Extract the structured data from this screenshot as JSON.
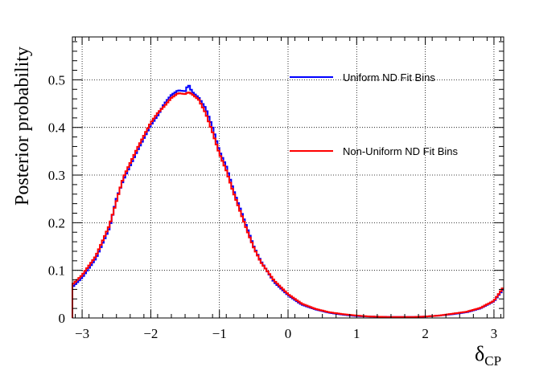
{
  "chart_data": {
    "type": "line",
    "title": "",
    "xlabel_main": "δ",
    "xlabel_sub": "CP",
    "ylabel": "Posterior probability",
    "xlim": [
      -3.1416,
      3.1416
    ],
    "ylim": [
      0,
      0.59
    ],
    "grid": true,
    "legend": "top-right",
    "xticks": [
      -3,
      -2,
      -1,
      0,
      1,
      2,
      3
    ],
    "xtick_labels": [
      "−3",
      "−2",
      "−1",
      "0",
      "1",
      "2",
      "3"
    ],
    "yticks": [
      0,
      0.1,
      0.2,
      0.3,
      0.4,
      0.5
    ],
    "ytick_labels": [
      "0",
      "0.1",
      "0.2",
      "0.3",
      "0.4",
      "0.5"
    ],
    "series": [
      {
        "name": "Uniform ND Fit Bins",
        "color": "#0000ff",
        "x": [
          -3.1416,
          -3.0,
          -2.8,
          -2.6,
          -2.5,
          -2.4,
          -2.2,
          -2.0,
          -1.9,
          -1.8,
          -1.7,
          -1.6,
          -1.5,
          -1.45,
          -1.4,
          -1.3,
          -1.2,
          -1.1,
          -1.0,
          -0.9,
          -0.8,
          -0.7,
          -0.6,
          -0.5,
          -0.4,
          -0.2,
          0.0,
          0.2,
          0.4,
          0.6,
          0.8,
          1.0,
          1.2,
          1.5,
          1.8,
          2.0,
          2.2,
          2.4,
          2.6,
          2.8,
          3.0,
          3.1416
        ],
        "y": [
          0.065,
          0.085,
          0.125,
          0.19,
          0.25,
          0.29,
          0.35,
          0.405,
          0.425,
          0.45,
          0.468,
          0.478,
          0.476,
          0.49,
          0.475,
          0.462,
          0.44,
          0.4,
          0.35,
          0.318,
          0.27,
          0.23,
          0.19,
          0.15,
          0.12,
          0.075,
          0.048,
          0.028,
          0.018,
          0.011,
          0.007,
          0.004,
          0.003,
          0.002,
          0.002,
          0.003,
          0.005,
          0.008,
          0.012,
          0.02,
          0.035,
          0.062
        ]
      },
      {
        "name": "Non-Uniform ND Fit Bins",
        "color": "#ff0000",
        "x": [
          -3.1416,
          -3.0,
          -2.8,
          -2.6,
          -2.5,
          -2.4,
          -2.2,
          -2.0,
          -1.9,
          -1.8,
          -1.7,
          -1.6,
          -1.5,
          -1.45,
          -1.4,
          -1.3,
          -1.2,
          -1.1,
          -1.0,
          -0.9,
          -0.8,
          -0.7,
          -0.6,
          -0.5,
          -0.4,
          -0.2,
          0.0,
          0.2,
          0.4,
          0.6,
          0.8,
          1.0,
          1.2,
          1.5,
          1.8,
          2.0,
          2.2,
          2.4,
          2.6,
          2.8,
          3.0,
          3.1416
        ],
        "y": [
          0.07,
          0.09,
          0.13,
          0.195,
          0.245,
          0.295,
          0.355,
          0.41,
          0.43,
          0.445,
          0.462,
          0.472,
          0.47,
          0.474,
          0.47,
          0.458,
          0.43,
          0.39,
          0.345,
          0.31,
          0.265,
          0.225,
          0.185,
          0.148,
          0.118,
          0.078,
          0.05,
          0.03,
          0.019,
          0.012,
          0.008,
          0.005,
          0.003,
          0.002,
          0.002,
          0.003,
          0.005,
          0.009,
          0.013,
          0.021,
          0.036,
          0.065
        ]
      }
    ]
  }
}
